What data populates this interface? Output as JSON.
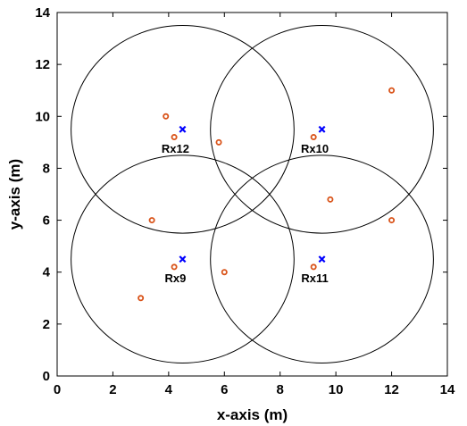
{
  "chart_data": {
    "type": "scatter",
    "title": "",
    "xlabel": "x-axis (m)",
    "ylabel": "y-axis (m)",
    "xlim": [
      0,
      14
    ],
    "ylim": [
      0,
      14
    ],
    "xticks": [
      0,
      2,
      4,
      6,
      8,
      10,
      12,
      14
    ],
    "yticks": [
      0,
      2,
      4,
      6,
      8,
      10,
      12,
      14
    ],
    "grid": false,
    "receivers": [
      {
        "label": "Rx12",
        "x": 4.5,
        "y": 9.5
      },
      {
        "label": "Rx10",
        "x": 9.5,
        "y": 9.5
      },
      {
        "label": "Rx9",
        "x": 4.5,
        "y": 4.5
      },
      {
        "label": "Rx11",
        "x": 9.5,
        "y": 4.5
      }
    ],
    "coverage_radius": 4.0,
    "points": [
      {
        "x": 3.9,
        "y": 10.0
      },
      {
        "x": 4.2,
        "y": 9.2
      },
      {
        "x": 5.8,
        "y": 9.0
      },
      {
        "x": 9.2,
        "y": 9.2
      },
      {
        "x": 12.0,
        "y": 11.0
      },
      {
        "x": 9.8,
        "y": 6.8
      },
      {
        "x": 12.0,
        "y": 6.0
      },
      {
        "x": 3.4,
        "y": 6.0
      },
      {
        "x": 4.2,
        "y": 4.2
      },
      {
        "x": 6.0,
        "y": 4.0
      },
      {
        "x": 9.2,
        "y": 4.2
      },
      {
        "x": 3.0,
        "y": 3.0
      }
    ],
    "colors": {
      "receiver": "#0000ff",
      "point": "#d95319",
      "circle": "#000000",
      "axis": "#000000"
    }
  }
}
